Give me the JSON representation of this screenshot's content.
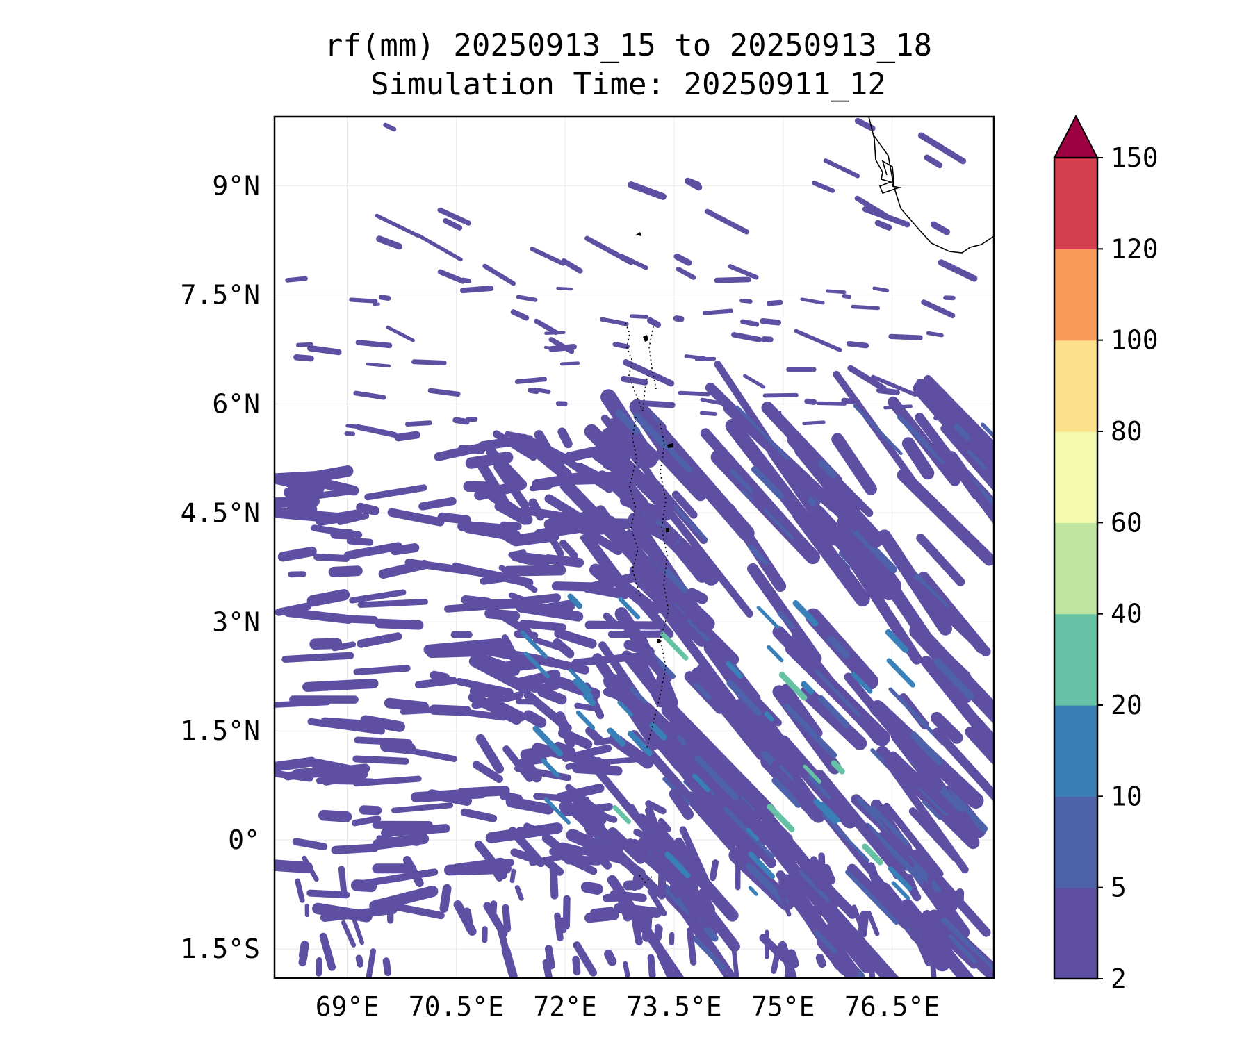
{
  "map": {
    "title_line1": "rf(mm) 20250913_15 to 20250913_18",
    "title_line2": "Simulation Time: 20250911_12",
    "extent": {
      "lon_min": 68.0,
      "lon_max": 77.9,
      "lat_min": -1.9,
      "lat_max": 9.95
    },
    "lon_ticks": [
      {
        "value": 69.0,
        "label": "69°E"
      },
      {
        "value": 70.5,
        "label": "70.5°E"
      },
      {
        "value": 72.0,
        "label": "72°E"
      },
      {
        "value": 73.5,
        "label": "73.5°E"
      },
      {
        "value": 75.0,
        "label": "75°E"
      },
      {
        "value": 76.5,
        "label": "76.5°E"
      }
    ],
    "lat_ticks": [
      {
        "value": 9.0,
        "label": "9°N"
      },
      {
        "value": 7.5,
        "label": "7.5°N"
      },
      {
        "value": 6.0,
        "label": "6°N"
      },
      {
        "value": 4.5,
        "label": "4.5°N"
      },
      {
        "value": 3.0,
        "label": "3°N"
      },
      {
        "value": 1.5,
        "label": "1.5°N"
      },
      {
        "value": 0.0,
        "label": "0°"
      },
      {
        "value": -1.5,
        "label": "1.5°S"
      }
    ],
    "gridlines": true
  },
  "colorbar": {
    "extend": "max",
    "extend_color": "#9e0142",
    "levels": [
      {
        "label": "2",
        "color": "#5e4fa2"
      },
      {
        "label": "5",
        "color": "#4d62ab"
      },
      {
        "label": "10",
        "color": "#3a80b8"
      },
      {
        "label": "20",
        "color": "#66c2a5"
      },
      {
        "label": "40",
        "color": "#bfe5a0"
      },
      {
        "label": "60",
        "color": "#f3faad"
      },
      {
        "label": "80",
        "color": "#fde08b"
      },
      {
        "label": "100",
        "color": "#f99b58"
      },
      {
        "label": "120",
        "color": "#d53e4f"
      },
      {
        "label": "150",
        "color": ""
      }
    ]
  }
}
